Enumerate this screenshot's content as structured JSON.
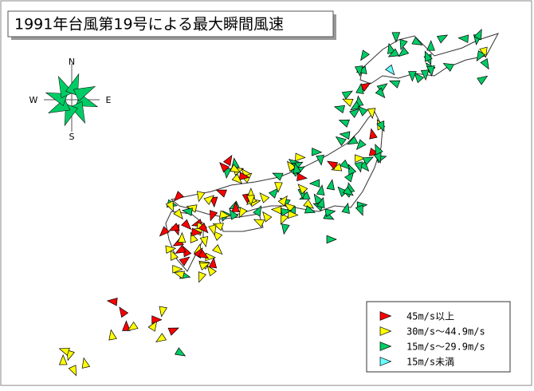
{
  "title": "1991年台風第19号による最大瞬間風速",
  "compass": {
    "north": "N",
    "east": "E",
    "south": "S",
    "west": "W"
  },
  "legend": [
    {
      "label": "45m/s以上",
      "color": "#ff0000"
    },
    {
      "label": "30m/s～44.9m/s",
      "color": "#ffff00"
    },
    {
      "label": "15m/s～29.9m/s",
      "color": "#00cc66"
    },
    {
      "label": "15m/s未満",
      "color": "#66ffff"
    }
  ]
}
